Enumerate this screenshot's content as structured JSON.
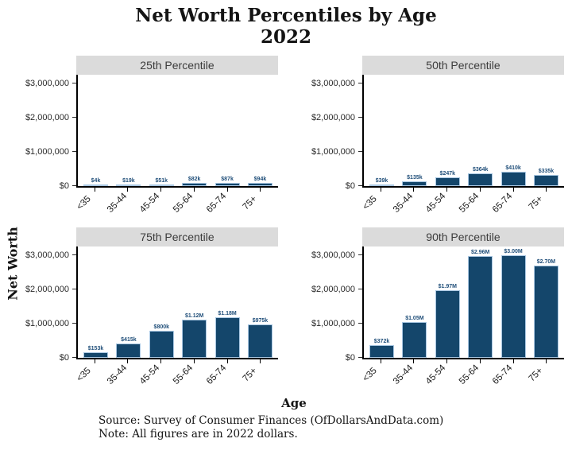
{
  "chart_data": {
    "type": "bar",
    "title": "Net Worth Percentiles by Age",
    "subtitle": "2022",
    "xlabel": "Age",
    "ylabel": "Net Worth",
    "categories": [
      "<35",
      "35-44",
      "45-54",
      "55-64",
      "65-74",
      "75+"
    ],
    "y_ticks": [
      "$0",
      "$1,000,000",
      "$2,000,000",
      "$3,000,000"
    ],
    "y_tick_values": [
      0,
      1000000,
      2000000,
      3000000
    ],
    "ylim": [
      0,
      3250000
    ],
    "grid": "off",
    "legend": "none",
    "panels": [
      {
        "title": "25th Percentile",
        "values": [
          4000,
          19000,
          51000,
          82000,
          87000,
          94000
        ],
        "labels": [
          "$4k",
          "$19k",
          "$51k",
          "$82k",
          "$87k",
          "$94k"
        ]
      },
      {
        "title": "50th Percentile",
        "values": [
          39000,
          135000,
          247000,
          364000,
          410000,
          335000
        ],
        "labels": [
          "$39k",
          "$135k",
          "$247k",
          "$364k",
          "$410k",
          "$335k"
        ]
      },
      {
        "title": "75th Percentile",
        "values": [
          153000,
          415000,
          800000,
          1120000,
          1180000,
          975000
        ],
        "labels": [
          "$153k",
          "$415k",
          "$800k",
          "$1.12M",
          "$1.18M",
          "$975k"
        ]
      },
      {
        "title": "90th Percentile",
        "values": [
          372000,
          1050000,
          1970000,
          2960000,
          3000000,
          2700000
        ],
        "labels": [
          "$372k",
          "$1.05M",
          "$1.97M",
          "$2.96M",
          "$3.00M",
          "$2.70M"
        ]
      }
    ],
    "source": "Source:  Survey of Consumer Finances (OfDollarsAndData.com)",
    "note": "Note: All figures are in 2022 dollars.",
    "colors": {
      "bar": "#14466B",
      "bar_border": "#A9C7E2",
      "panel_header_bg": "#DBDBDB",
      "axis": "#000000",
      "bar_label": "#1F4E79",
      "text": "#141414"
    }
  }
}
